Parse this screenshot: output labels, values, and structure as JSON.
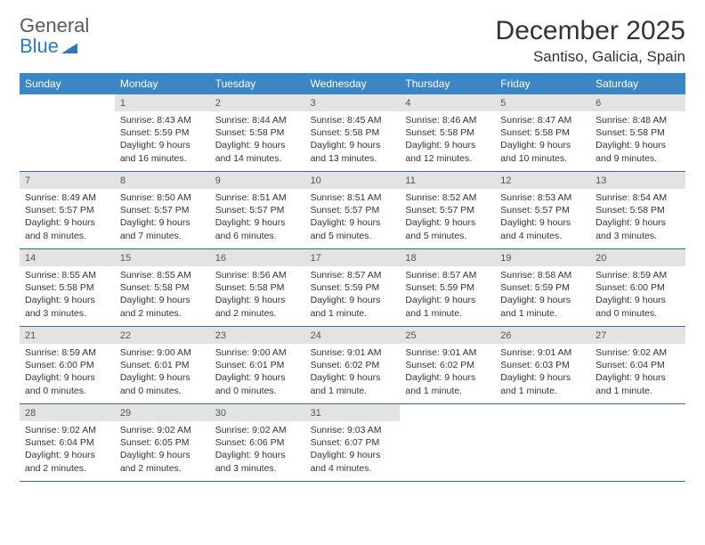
{
  "logo": {
    "word1": "General",
    "word2": "Blue"
  },
  "title": "December 2025",
  "location": "Santiso, Galicia, Spain",
  "colors": {
    "header_bg": "#3d86c6",
    "header_text": "#ffffff",
    "daynum_bg": "#e3e3e3",
    "text": "#333333",
    "rule": "#2e6da4",
    "logo_gray": "#5a5a5a",
    "logo_blue": "#2e79bd"
  },
  "weekdays": [
    "Sunday",
    "Monday",
    "Tuesday",
    "Wednesday",
    "Thursday",
    "Friday",
    "Saturday"
  ],
  "weeks": [
    [
      {
        "num": "",
        "sunrise": "",
        "sunset": "",
        "daylight": ""
      },
      {
        "num": "1",
        "sunrise": "Sunrise: 8:43 AM",
        "sunset": "Sunset: 5:59 PM",
        "daylight": "Daylight: 9 hours and 16 minutes."
      },
      {
        "num": "2",
        "sunrise": "Sunrise: 8:44 AM",
        "sunset": "Sunset: 5:58 PM",
        "daylight": "Daylight: 9 hours and 14 minutes."
      },
      {
        "num": "3",
        "sunrise": "Sunrise: 8:45 AM",
        "sunset": "Sunset: 5:58 PM",
        "daylight": "Daylight: 9 hours and 13 minutes."
      },
      {
        "num": "4",
        "sunrise": "Sunrise: 8:46 AM",
        "sunset": "Sunset: 5:58 PM",
        "daylight": "Daylight: 9 hours and 12 minutes."
      },
      {
        "num": "5",
        "sunrise": "Sunrise: 8:47 AM",
        "sunset": "Sunset: 5:58 PM",
        "daylight": "Daylight: 9 hours and 10 minutes."
      },
      {
        "num": "6",
        "sunrise": "Sunrise: 8:48 AM",
        "sunset": "Sunset: 5:58 PM",
        "daylight": "Daylight: 9 hours and 9 minutes."
      }
    ],
    [
      {
        "num": "7",
        "sunrise": "Sunrise: 8:49 AM",
        "sunset": "Sunset: 5:57 PM",
        "daylight": "Daylight: 9 hours and 8 minutes."
      },
      {
        "num": "8",
        "sunrise": "Sunrise: 8:50 AM",
        "sunset": "Sunset: 5:57 PM",
        "daylight": "Daylight: 9 hours and 7 minutes."
      },
      {
        "num": "9",
        "sunrise": "Sunrise: 8:51 AM",
        "sunset": "Sunset: 5:57 PM",
        "daylight": "Daylight: 9 hours and 6 minutes."
      },
      {
        "num": "10",
        "sunrise": "Sunrise: 8:51 AM",
        "sunset": "Sunset: 5:57 PM",
        "daylight": "Daylight: 9 hours and 5 minutes."
      },
      {
        "num": "11",
        "sunrise": "Sunrise: 8:52 AM",
        "sunset": "Sunset: 5:57 PM",
        "daylight": "Daylight: 9 hours and 5 minutes."
      },
      {
        "num": "12",
        "sunrise": "Sunrise: 8:53 AM",
        "sunset": "Sunset: 5:57 PM",
        "daylight": "Daylight: 9 hours and 4 minutes."
      },
      {
        "num": "13",
        "sunrise": "Sunrise: 8:54 AM",
        "sunset": "Sunset: 5:58 PM",
        "daylight": "Daylight: 9 hours and 3 minutes."
      }
    ],
    [
      {
        "num": "14",
        "sunrise": "Sunrise: 8:55 AM",
        "sunset": "Sunset: 5:58 PM",
        "daylight": "Daylight: 9 hours and 3 minutes."
      },
      {
        "num": "15",
        "sunrise": "Sunrise: 8:55 AM",
        "sunset": "Sunset: 5:58 PM",
        "daylight": "Daylight: 9 hours and 2 minutes."
      },
      {
        "num": "16",
        "sunrise": "Sunrise: 8:56 AM",
        "sunset": "Sunset: 5:58 PM",
        "daylight": "Daylight: 9 hours and 2 minutes."
      },
      {
        "num": "17",
        "sunrise": "Sunrise: 8:57 AM",
        "sunset": "Sunset: 5:59 PM",
        "daylight": "Daylight: 9 hours and 1 minute."
      },
      {
        "num": "18",
        "sunrise": "Sunrise: 8:57 AM",
        "sunset": "Sunset: 5:59 PM",
        "daylight": "Daylight: 9 hours and 1 minute."
      },
      {
        "num": "19",
        "sunrise": "Sunrise: 8:58 AM",
        "sunset": "Sunset: 5:59 PM",
        "daylight": "Daylight: 9 hours and 1 minute."
      },
      {
        "num": "20",
        "sunrise": "Sunrise: 8:59 AM",
        "sunset": "Sunset: 6:00 PM",
        "daylight": "Daylight: 9 hours and 0 minutes."
      }
    ],
    [
      {
        "num": "21",
        "sunrise": "Sunrise: 8:59 AM",
        "sunset": "Sunset: 6:00 PM",
        "daylight": "Daylight: 9 hours and 0 minutes."
      },
      {
        "num": "22",
        "sunrise": "Sunrise: 9:00 AM",
        "sunset": "Sunset: 6:01 PM",
        "daylight": "Daylight: 9 hours and 0 minutes."
      },
      {
        "num": "23",
        "sunrise": "Sunrise: 9:00 AM",
        "sunset": "Sunset: 6:01 PM",
        "daylight": "Daylight: 9 hours and 0 minutes."
      },
      {
        "num": "24",
        "sunrise": "Sunrise: 9:01 AM",
        "sunset": "Sunset: 6:02 PM",
        "daylight": "Daylight: 9 hours and 1 minute."
      },
      {
        "num": "25",
        "sunrise": "Sunrise: 9:01 AM",
        "sunset": "Sunset: 6:02 PM",
        "daylight": "Daylight: 9 hours and 1 minute."
      },
      {
        "num": "26",
        "sunrise": "Sunrise: 9:01 AM",
        "sunset": "Sunset: 6:03 PM",
        "daylight": "Daylight: 9 hours and 1 minute."
      },
      {
        "num": "27",
        "sunrise": "Sunrise: 9:02 AM",
        "sunset": "Sunset: 6:04 PM",
        "daylight": "Daylight: 9 hours and 1 minute."
      }
    ],
    [
      {
        "num": "28",
        "sunrise": "Sunrise: 9:02 AM",
        "sunset": "Sunset: 6:04 PM",
        "daylight": "Daylight: 9 hours and 2 minutes."
      },
      {
        "num": "29",
        "sunrise": "Sunrise: 9:02 AM",
        "sunset": "Sunset: 6:05 PM",
        "daylight": "Daylight: 9 hours and 2 minutes."
      },
      {
        "num": "30",
        "sunrise": "Sunrise: 9:02 AM",
        "sunset": "Sunset: 6:06 PM",
        "daylight": "Daylight: 9 hours and 3 minutes."
      },
      {
        "num": "31",
        "sunrise": "Sunrise: 9:03 AM",
        "sunset": "Sunset: 6:07 PM",
        "daylight": "Daylight: 9 hours and 4 minutes."
      },
      {
        "num": "",
        "sunrise": "",
        "sunset": "",
        "daylight": ""
      },
      {
        "num": "",
        "sunrise": "",
        "sunset": "",
        "daylight": ""
      },
      {
        "num": "",
        "sunrise": "",
        "sunset": "",
        "daylight": ""
      }
    ]
  ]
}
